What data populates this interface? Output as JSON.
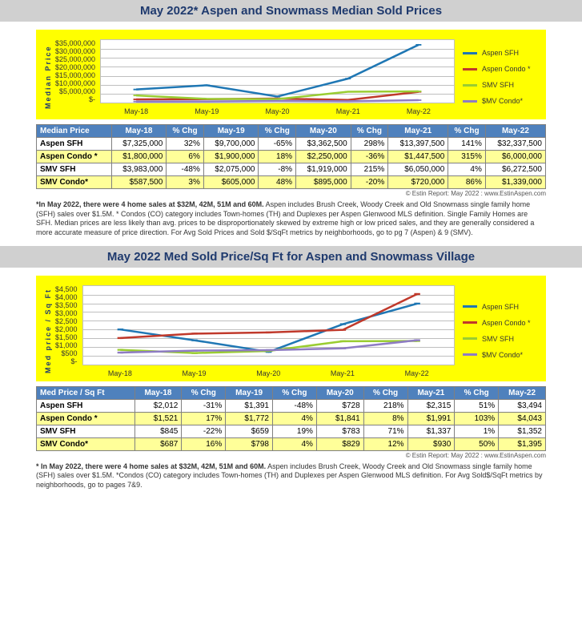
{
  "palette": {
    "aspen_sfh": "#1f77b4",
    "aspen_condo": "#c0392b",
    "smv_sfh": "#9acd32",
    "smv_condo": "#8e7cc3",
    "title_text": "#1f3a6e",
    "chart_bg": "#ffff00",
    "plot_bg": "#ffffff",
    "grid": "#bfbfbf",
    "th_bg": "#4f81bd",
    "row_alt": "#ffff99"
  },
  "charts": [
    {
      "id": "chart1",
      "title": "May 2022* Aspen and Snowmass Median Sold Prices",
      "y_label": "Median  Price",
      "y_ticks": [
        "$35,000,000",
        "$30,000,000",
        "$25,000,000",
        "$20,000,000",
        "$15,000,000",
        "$10,000,000",
        "$5,000,000",
        "$-"
      ],
      "y_min": 0,
      "y_max": 35000000,
      "y_step": 5000000,
      "x_labels": [
        "May-18",
        "May-19",
        "May-20",
        "May-21",
        "May-22"
      ],
      "series": [
        {
          "key": "aspen_sfh",
          "label": "Aspen SFH",
          "values": [
            7325000,
            9700000,
            3362500,
            13397500,
            32337500
          ]
        },
        {
          "key": "aspen_condo",
          "label": "Aspen Condo *",
          "values": [
            1800000,
            1900000,
            2250000,
            1447500,
            6000000
          ]
        },
        {
          "key": "smv_sfh",
          "label": "SMV SFH",
          "values": [
            3983000,
            2075000,
            1919000,
            6050000,
            6272500
          ]
        },
        {
          "key": "smv_condo",
          "label": "$MV Condo*",
          "values": [
            587500,
            605000,
            895000,
            720000,
            1339000
          ]
        }
      ],
      "line_width": 2.5
    },
    {
      "id": "chart2",
      "title": "May 2022 Med Sold Price/Sq Ft for Aspen and Snowmass Village",
      "y_label": "Med  price / Sq  Ft",
      "y_ticks": [
        "$4,500",
        "$4,000",
        "$3,500",
        "$3,000",
        "$2,500",
        "$2,000",
        "$1,500",
        "$1,000",
        "$500",
        "$-"
      ],
      "y_min": 0,
      "y_max": 4500,
      "y_step": 500,
      "x_labels": [
        "May-18",
        "May-19",
        "May-20",
        "May-21",
        "May-22"
      ],
      "series": [
        {
          "key": "aspen_sfh",
          "label": "Aspen SFH",
          "values": [
            2012,
            1391,
            728,
            2315,
            3494
          ]
        },
        {
          "key": "aspen_condo",
          "label": "Aspen Condo *",
          "values": [
            1521,
            1772,
            1841,
            1991,
            4043
          ]
        },
        {
          "key": "smv_sfh",
          "label": "SMV SFH",
          "values": [
            845,
            659,
            783,
            1337,
            1352
          ]
        },
        {
          "key": "smv_condo",
          "label": "$MV Condo*",
          "values": [
            687,
            798,
            829,
            930,
            1395
          ]
        }
      ],
      "line_width": 2.5
    }
  ],
  "tables": [
    {
      "id": "table1",
      "header": [
        "Median Price",
        "May-18",
        "% Chg",
        "May-19",
        "% Chg",
        "May-20",
        "% Chg",
        "May-21",
        "% Chg",
        "May-22"
      ],
      "rows": [
        {
          "cls": "row-white",
          "cells": [
            "Aspen SFH",
            "$7,325,000",
            "32%",
            "$9,700,000",
            "-65%",
            "$3,362,500",
            "298%",
            "$13,397,500",
            "141%",
            "$32,337,500"
          ]
        },
        {
          "cls": "row-yellow",
          "cells": [
            "Aspen Condo *",
            "$1,800,000",
            "6%",
            "$1,900,000",
            "18%",
            "$2,250,000",
            "-36%",
            "$1,447,500",
            "315%",
            "$6,000,000"
          ]
        },
        {
          "cls": "row-white",
          "cells": [
            "SMV SFH",
            "$3,983,000",
            "-48%",
            "$2,075,000",
            "-8%",
            "$1,919,000",
            "215%",
            "$6,050,000",
            "4%",
            "$6,272,500"
          ]
        },
        {
          "cls": "row-yellow",
          "cells": [
            "SMV Condo*",
            "$587,500",
            "3%",
            "$605,000",
            "48%",
            "$895,000",
            "-20%",
            "$720,000",
            "86%",
            "$1,339,000"
          ]
        }
      ]
    },
    {
      "id": "table2",
      "header": [
        "Med Price / Sq Ft",
        "May-18",
        "% Chg",
        "May-19",
        "% Chg",
        "May-20",
        "% Chg",
        "May-21",
        "% Chg",
        "May-22"
      ],
      "rows": [
        {
          "cls": "row-white",
          "cells": [
            "Aspen SFH",
            "$2,012",
            "-31%",
            "$1,391",
            "-48%",
            "$728",
            "218%",
            "$2,315",
            "51%",
            "$3,494"
          ]
        },
        {
          "cls": "row-yellow",
          "cells": [
            "Aspen Condo *",
            "$1,521",
            "17%",
            "$1,772",
            "4%",
            "$1,841",
            "8%",
            "$1,991",
            "103%",
            "$4,043"
          ]
        },
        {
          "cls": "row-white",
          "cells": [
            "SMV SFH",
            "$845",
            "-22%",
            "$659",
            "19%",
            "$783",
            "71%",
            "$1,337",
            "1%",
            "$1,352"
          ]
        },
        {
          "cls": "row-yellow",
          "cells": [
            "SMV Condo*",
            "$687",
            "16%",
            "$798",
            "4%",
            "$829",
            "12%",
            "$930",
            "50%",
            "$1,395"
          ]
        }
      ]
    }
  ],
  "attribution": "© Estin Report: May 2022 : www.EstinAspen.com",
  "footnotes": [
    {
      "bold": "*In May 2022, there were 4 home sales at $32M, 42M, 51M and 60M.",
      "rest": " Aspen includes Brush Creek, Woody Creek and Old Snowmass single family home (SFH) sales over $1.5M.  * Condos (CO) category includes Town-homes (TH) and Duplexes per Aspen Glenwood MLS definition. Single Family Homes are SFH. Median prices are less likely than avg. prices to be disproportionately skewed by extreme high or low priced sales, and they are generally considered a more accurate measure of price direction. For Avg Sold Prices and Sold $/SqFt metrics by neighborhoods, go to pg 7 (Aspen) & 9 (SMV)."
    },
    {
      "bold": "* In May 2022, there were 4 home sales at $32M, 42M, 51M and 60M.",
      "rest": " Aspen includes Brush Creek, Woody Creek and Old Snowmass single family home (SFH) sales over $1.5M. *Condos (CO) category includes Town-homes (TH) and Duplexes per Aspen Glenwood MLS definition. For Avg Sold$/SqFt metrics by neighborhoods, go to pages 7&9."
    }
  ]
}
